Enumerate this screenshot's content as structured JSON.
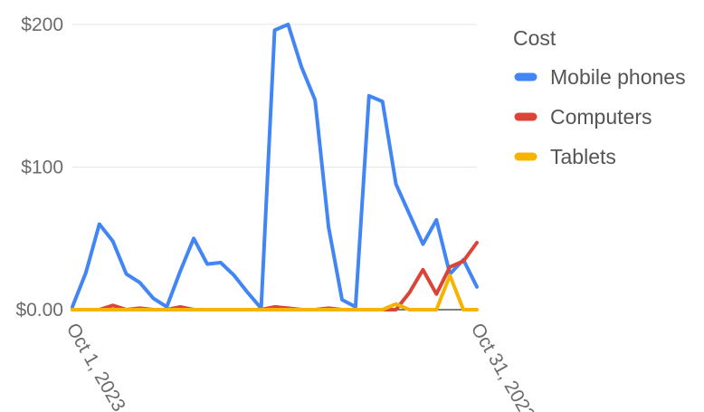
{
  "chart_data": {
    "type": "line",
    "x": [
      "Oct 1, 2023",
      "Oct 2, 2023",
      "Oct 3, 2023",
      "Oct 4, 2023",
      "Oct 5, 2023",
      "Oct 6, 2023",
      "Oct 7, 2023",
      "Oct 8, 2023",
      "Oct 9, 2023",
      "Oct 10, 2023",
      "Oct 11, 2023",
      "Oct 12, 2023",
      "Oct 13, 2023",
      "Oct 14, 2023",
      "Oct 15, 2023",
      "Oct 16, 2023",
      "Oct 17, 2023",
      "Oct 18, 2023",
      "Oct 19, 2023",
      "Oct 20, 2023",
      "Oct 21, 2023",
      "Oct 22, 2023",
      "Oct 23, 2023",
      "Oct 24, 2023",
      "Oct 25, 2023",
      "Oct 26, 2023",
      "Oct 27, 2023",
      "Oct 28, 2023",
      "Oct 29, 2023",
      "Oct 30, 2023",
      "Oct 31, 2023"
    ],
    "x_tick_labels": [
      "Oct 1, 2023",
      "Oct 31, 2023"
    ],
    "y_tick_labels": [
      "$0.00",
      "$100",
      "$200"
    ],
    "y_ticks": [
      0,
      100,
      200
    ],
    "ylim": [
      0,
      200
    ],
    "grid": true,
    "legend_title": "Cost",
    "legend_position": "right",
    "series": [
      {
        "name": "Mobile phones",
        "color": "#4285f4",
        "values": [
          2,
          26,
          60,
          48,
          25,
          19,
          8,
          2,
          27,
          50,
          32,
          33,
          24,
          12,
          1,
          196,
          200,
          170,
          147,
          58,
          7,
          2,
          150,
          146,
          88,
          67,
          46,
          63,
          25,
          35,
          16
        ]
      },
      {
        "name": "Computers",
        "color": "#db4437",
        "values": [
          0,
          0,
          0,
          3,
          0,
          1,
          0,
          0,
          2,
          0,
          0,
          0,
          0,
          0,
          0,
          2,
          1,
          0,
          0,
          1,
          0,
          0,
          0,
          0,
          0,
          12,
          28,
          11,
          30,
          34,
          47
        ]
      },
      {
        "name": "Tablets",
        "color": "#f4b400",
        "values": [
          0,
          0,
          0,
          0,
          0,
          0,
          0,
          0,
          0,
          0,
          0,
          0,
          0,
          0,
          0,
          0,
          0,
          0,
          0,
          0,
          0,
          0,
          0,
          0,
          4,
          0,
          0,
          0,
          24,
          0,
          0
        ]
      }
    ]
  }
}
